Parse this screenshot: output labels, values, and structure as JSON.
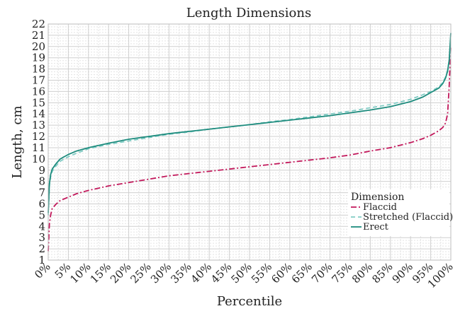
{
  "chart_data": {
    "type": "line",
    "title": "Length Dimensions",
    "xlabel": "Percentile",
    "ylabel": "Length, cm",
    "xlim": [
      0,
      100
    ],
    "ylim": [
      1,
      22
    ],
    "x_ticks": [
      0,
      5,
      10,
      15,
      20,
      25,
      30,
      35,
      40,
      45,
      50,
      55,
      60,
      65,
      70,
      75,
      80,
      85,
      90,
      95,
      100
    ],
    "x_tick_labels": [
      "0%",
      "5%",
      "10%",
      "15%",
      "20%",
      "25%",
      "30%",
      "35%",
      "40%",
      "45%",
      "50%",
      "55%",
      "60%",
      "65%",
      "70%",
      "75%",
      "80%",
      "85%",
      "90%",
      "95%",
      "100%"
    ],
    "y_ticks": [
      1,
      2,
      3,
      4,
      5,
      6,
      7,
      8,
      9,
      10,
      11,
      12,
      13,
      14,
      15,
      16,
      17,
      18,
      19,
      20,
      21,
      22
    ],
    "y_tick_labels": [
      "1",
      "2",
      "3",
      "4",
      "5",
      "6",
      "7",
      "8",
      "9",
      "10",
      "11",
      "12",
      "13",
      "14",
      "15",
      "16",
      "17",
      "18",
      "19",
      "20",
      "21",
      "22"
    ],
    "grid": true,
    "legend": {
      "title": "Dimension",
      "position": "bottom-right"
    },
    "series": [
      {
        "name": "Flaccid",
        "color": "#c2185b",
        "dash": "dashdot",
        "x": [
          0,
          0.3,
          0.6,
          1,
          2,
          3,
          5,
          7,
          10,
          15,
          20,
          25,
          30,
          35,
          40,
          45,
          50,
          55,
          60,
          65,
          70,
          75,
          80,
          85,
          90,
          93,
          95,
          97,
          98,
          98.7,
          99.2,
          99.6,
          100
        ],
        "y": [
          1.8,
          4.2,
          5.0,
          5.6,
          6.0,
          6.3,
          6.6,
          6.9,
          7.2,
          7.6,
          7.9,
          8.2,
          8.5,
          8.7,
          8.9,
          9.1,
          9.3,
          9.5,
          9.7,
          9.9,
          10.1,
          10.35,
          10.7,
          11.0,
          11.45,
          11.8,
          12.1,
          12.5,
          12.8,
          13.2,
          14.0,
          16.5,
          20.0
        ]
      },
      {
        "name": "Stretched (Flaccid)",
        "color": "#80cbc4",
        "dash": "dashed",
        "x": [
          0,
          0.3,
          0.6,
          1,
          2,
          3,
          5,
          7,
          10,
          15,
          20,
          25,
          30,
          35,
          40,
          45,
          50,
          55,
          60,
          65,
          70,
          75,
          80,
          85,
          90,
          93,
          95,
          97,
          98,
          98.7,
          99.2,
          99.6,
          100
        ],
        "y": [
          5.0,
          7.6,
          8.4,
          8.9,
          9.4,
          9.8,
          10.2,
          10.5,
          10.9,
          11.3,
          11.6,
          11.9,
          12.2,
          12.4,
          12.65,
          12.85,
          13.05,
          13.3,
          13.5,
          13.75,
          14.0,
          14.25,
          14.55,
          14.85,
          15.3,
          15.7,
          16.0,
          16.4,
          16.8,
          17.3,
          17.9,
          18.8,
          20.0
        ]
      },
      {
        "name": "Erect",
        "color": "#1e8c7e",
        "dash": "solid",
        "x": [
          0,
          0.3,
          0.6,
          1,
          2,
          3,
          5,
          7,
          10,
          15,
          20,
          25,
          30,
          35,
          40,
          45,
          50,
          55,
          60,
          65,
          70,
          75,
          80,
          85,
          90,
          93,
          95,
          97,
          98,
          98.7,
          99.2,
          99.6,
          100
        ],
        "y": [
          5.2,
          7.8,
          8.6,
          9.1,
          9.6,
          10.0,
          10.4,
          10.7,
          11.0,
          11.4,
          11.75,
          12.0,
          12.25,
          12.45,
          12.65,
          12.85,
          13.05,
          13.25,
          13.45,
          13.65,
          13.85,
          14.1,
          14.35,
          14.65,
          15.1,
          15.5,
          15.9,
          16.3,
          16.7,
          17.2,
          17.8,
          18.8,
          21.2
        ]
      }
    ]
  }
}
